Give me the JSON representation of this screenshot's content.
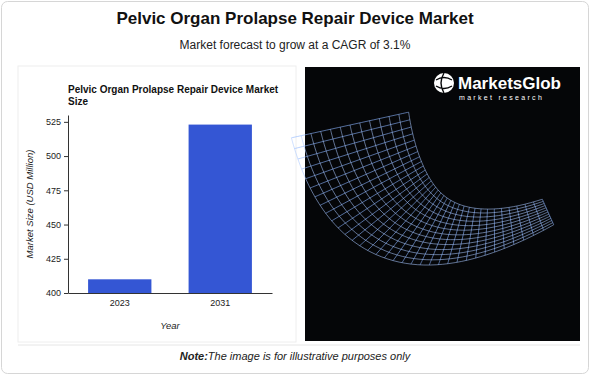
{
  "header": {
    "title": "Pelvic Organ Prolapse Repair Device Market",
    "subtitle": "Market forecast to grow at a CAGR of 3.1%"
  },
  "chart_data": {
    "type": "bar",
    "title": "Pelvic Organ Prolapse Repair Device Market Size",
    "x_label": "Year",
    "y_label": "Market Size (USD Million)",
    "categories": [
      "2023",
      "2031"
    ],
    "values": [
      410,
      523
    ],
    "color": "#3456d4",
    "ylim": [
      400,
      530
    ],
    "yticks": [
      400,
      425,
      450,
      475,
      500,
      525
    ],
    "grid": false
  },
  "logo": {
    "name": "MarketsGlob",
    "tagline": "market research"
  },
  "note": {
    "label": "Note:",
    "text": "The image is for illustrative purposes only"
  }
}
